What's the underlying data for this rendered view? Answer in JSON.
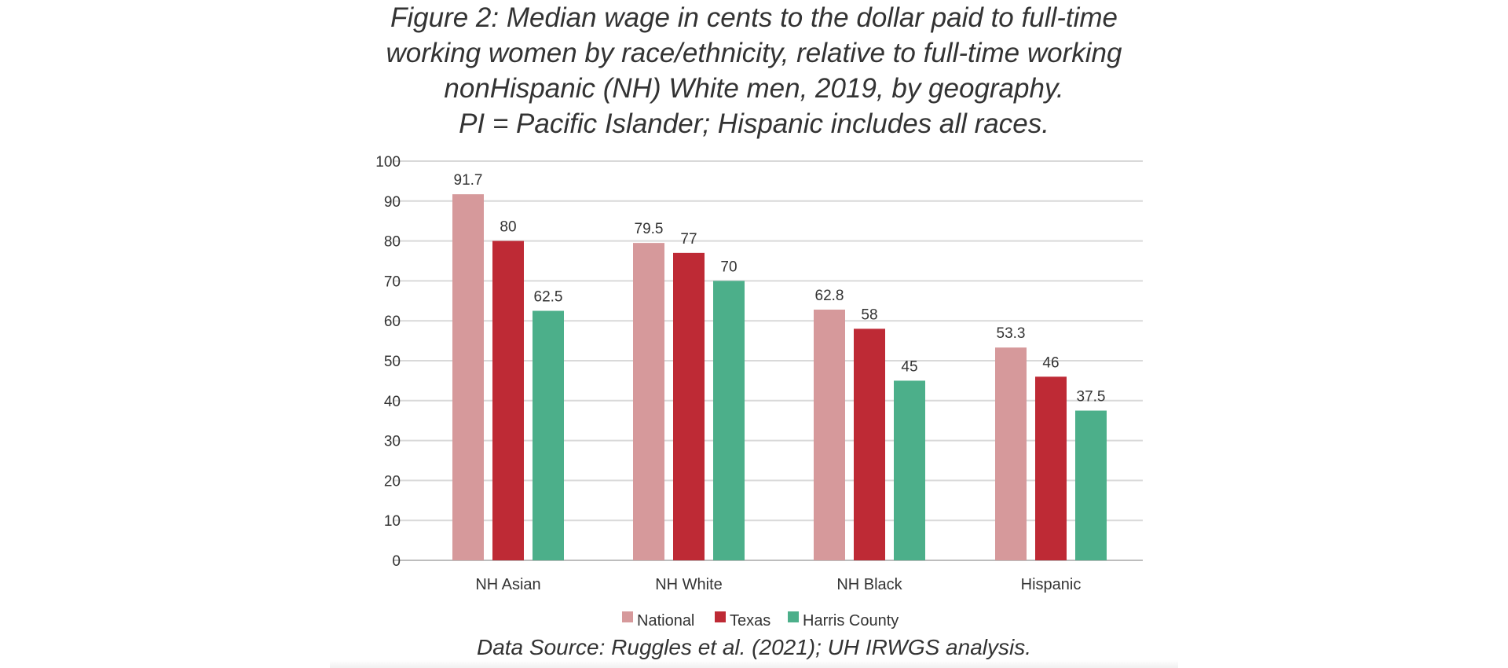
{
  "chart_data": {
    "type": "bar",
    "title_lines": [
      "Figure 2: Median wage in cents to the dollar paid to full-time",
      "working women by race/ethnicity, relative to full-time working",
      "nonHispanic (NH) White men, 2019, by geography.",
      "PI = Pacific Islander; Hispanic includes all races."
    ],
    "categories": [
      "NH Asian",
      "NH White",
      "NH Black",
      "Hispanic"
    ],
    "series": [
      {
        "name": "National",
        "color": "#d6999b",
        "values": [
          91.7,
          79.5,
          62.8,
          53.3
        ],
        "labels": [
          "91.7",
          "79.5",
          "62.8",
          "53.3"
        ]
      },
      {
        "name": "Texas",
        "color": "#be2a35",
        "values": [
          80,
          77,
          58,
          46
        ],
        "labels": [
          "80",
          "77",
          "58",
          "46"
        ]
      },
      {
        "name": "Harris County",
        "color": "#4caf8a",
        "values": [
          62.5,
          70,
          45,
          37.5
        ],
        "labels": [
          "62.5",
          "70",
          "45",
          "37.5"
        ]
      }
    ],
    "ylim": [
      0,
      100
    ],
    "yticks": [
      0,
      10,
      20,
      30,
      40,
      50,
      60,
      70,
      80,
      90,
      100
    ],
    "grid": true,
    "legend": "bottom",
    "source": "Data Source: Ruggles et al. (2021); UH IRWGS analysis."
  }
}
